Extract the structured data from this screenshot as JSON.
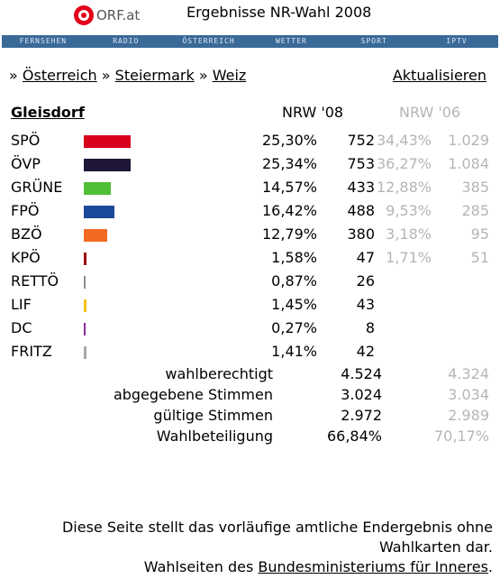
{
  "header": {
    "logo_text": "ORF.at",
    "title": "Ergebnisse NR-Wahl 2008",
    "brand_color": "#e2001a"
  },
  "nav": {
    "items": [
      "FERNSEHEN",
      "RADIO",
      "ÖSTERREICH",
      "WETTER",
      "SPORT",
      "IPTV"
    ],
    "bar_color": "#3a6a98"
  },
  "breadcrumb": {
    "sep": "»",
    "items": [
      "Österreich",
      "Steiermark",
      "Weiz"
    ],
    "refresh_label": "Aktualisieren"
  },
  "results": {
    "district": "Gleisdorf",
    "col_now": "NRW '08",
    "col_prev": "NRW '06",
    "parties": [
      {
        "name": "SPÖ",
        "pct": "25,30%",
        "votes": "752",
        "pct_prev": "34,43%",
        "votes_prev": "1.029",
        "color": "#d8001c",
        "share": 25.3
      },
      {
        "name": "ÖVP",
        "pct": "25,34%",
        "votes": "753",
        "pct_prev": "36,27%",
        "votes_prev": "1.084",
        "color": "#1f1638",
        "share": 25.34
      },
      {
        "name": "GRÜNE",
        "pct": "14,57%",
        "votes": "433",
        "pct_prev": "12,88%",
        "votes_prev": "385",
        "color": "#4fbf38",
        "share": 14.57
      },
      {
        "name": "FPÖ",
        "pct": "16,42%",
        "votes": "488",
        "pct_prev": "9,53%",
        "votes_prev": "285",
        "color": "#1b4898",
        "share": 16.42
      },
      {
        "name": "BZÖ",
        "pct": "12,79%",
        "votes": "380",
        "pct_prev": "3,18%",
        "votes_prev": "95",
        "color": "#f26a22",
        "share": 12.79
      },
      {
        "name": "KPÖ",
        "pct": "1,58%",
        "votes": "47",
        "pct_prev": "1,71%",
        "votes_prev": "51",
        "color": "#9b0d0d",
        "share": 1.58
      },
      {
        "name": "RETTÖ",
        "pct": "0,87%",
        "votes": "26",
        "pct_prev": "",
        "votes_prev": "",
        "color": "#8c8c8c",
        "share": 0.87
      },
      {
        "name": "LIF",
        "pct": "1,45%",
        "votes": "43",
        "pct_prev": "",
        "votes_prev": "",
        "color": "#f2c318",
        "share": 1.45
      },
      {
        "name": "DC",
        "pct": "0,27%",
        "votes": "8",
        "pct_prev": "",
        "votes_prev": "",
        "color": "#8a2b9c",
        "share": 0.27
      },
      {
        "name": "FRITZ",
        "pct": "1,41%",
        "votes": "42",
        "pct_prev": "",
        "votes_prev": "",
        "color": "#a8a8a8",
        "share": 1.41
      }
    ]
  },
  "stats": [
    {
      "label": "wahlberechtigt",
      "value": "4.524",
      "prev": "4.324"
    },
    {
      "label": "abgegebene Stimmen",
      "value": "3.024",
      "prev": "3.034"
    },
    {
      "label": "gültige Stimmen",
      "value": "2.972",
      "prev": "2.989"
    },
    {
      "label": "Wahlbeteiligung",
      "value": "66,84%",
      "prev": "70,17%"
    }
  ],
  "footer": {
    "line1": "Diese Seite stellt das vorläufige amtliche Endergebnis ohne Wahlkarten dar.",
    "line2_prefix": "Wahlseiten des ",
    "line2_link": "Bundesministeriums für Inneres",
    "line2_suffix": "."
  }
}
